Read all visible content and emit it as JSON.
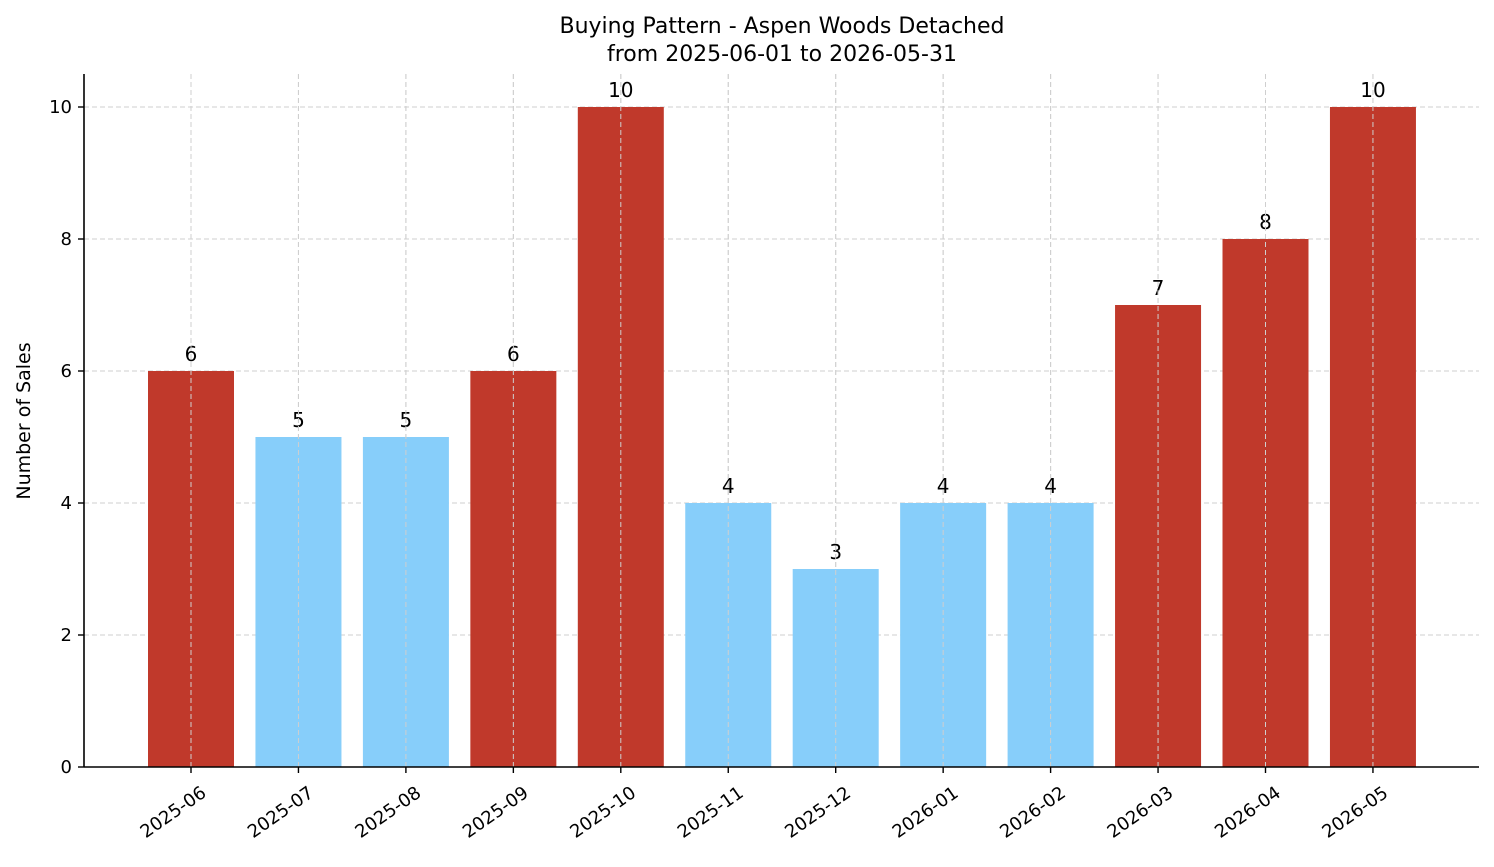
{
  "chart_data": {
    "type": "bar",
    "title": "Buying Pattern - Aspen Woods Detached",
    "subtitle": "from 2025-06-01 to 2026-05-31",
    "xlabel": "",
    "ylabel": "Number of Sales",
    "categories": [
      "2025-06",
      "2025-07",
      "2025-08",
      "2025-09",
      "2025-10",
      "2025-11",
      "2025-12",
      "2026-01",
      "2026-02",
      "2026-03",
      "2026-04",
      "2026-05"
    ],
    "values": [
      6,
      5,
      5,
      6,
      10,
      4,
      3,
      4,
      4,
      7,
      8,
      10
    ],
    "ylim": [
      0,
      10.5
    ],
    "yticks": [
      0,
      2,
      4,
      6,
      8,
      10
    ],
    "grid": true,
    "colors": {
      "high": "#c0392b",
      "low": "#87cefa"
    },
    "bar_colors": [
      "high",
      "low",
      "low",
      "high",
      "high",
      "low",
      "low",
      "low",
      "low",
      "high",
      "high",
      "high"
    ],
    "data_labels": true
  }
}
